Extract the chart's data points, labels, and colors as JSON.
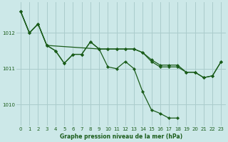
{
  "background_color": "#cce8e8",
  "plot_bg_color": "#cce8e8",
  "line_color": "#1a5c1a",
  "marker_color": "#1a5c1a",
  "grid_color": "#aacccc",
  "xlabel": "Graphe pression niveau de la mer (hPa)",
  "xlabel_color": "#1a5c1a",
  "ylim": [
    1009.4,
    1012.85
  ],
  "yticks": [
    1010,
    1011,
    1012
  ],
  "xticks": [
    0,
    1,
    2,
    3,
    4,
    5,
    6,
    7,
    8,
    9,
    10,
    11,
    12,
    13,
    14,
    15,
    16,
    17,
    18,
    19,
    20,
    21,
    22,
    23
  ],
  "series1_x": [
    0,
    1,
    2,
    3,
    4,
    5,
    6,
    7,
    8,
    9,
    10,
    11,
    12,
    13,
    14,
    15,
    16,
    17,
    18,
    19,
    20,
    21,
    22,
    23
  ],
  "series1_y": [
    1012.6,
    1012.0,
    1012.25,
    1011.65,
    1011.5,
    1011.15,
    1011.4,
    1011.4,
    1011.75,
    1011.55,
    1011.55,
    1011.55,
    1011.55,
    1011.55,
    1011.45,
    1011.2,
    1011.05,
    1011.05,
    1011.05,
    1010.9,
    1010.9,
    1010.75,
    1010.8,
    1011.2
  ],
  "series2_x": [
    0,
    1,
    2,
    3,
    4,
    5,
    6,
    7,
    8,
    9,
    10,
    11,
    12,
    13,
    14,
    15,
    16,
    17,
    18
  ],
  "series2_y": [
    1012.6,
    1012.0,
    1012.25,
    1011.65,
    1011.5,
    1011.15,
    1011.4,
    1011.4,
    1011.75,
    1011.55,
    1011.05,
    1011.0,
    1011.2,
    1011.0,
    1010.35,
    1009.85,
    1009.75,
    1009.62,
    1009.62
  ],
  "series3_x": [
    0,
    1,
    2,
    3,
    9,
    10,
    11,
    12,
    13,
    14,
    15,
    16,
    17,
    18,
    19,
    20,
    21,
    22,
    23
  ],
  "series3_y": [
    1012.6,
    1012.0,
    1012.25,
    1011.65,
    1011.55,
    1011.55,
    1011.55,
    1011.55,
    1011.55,
    1011.45,
    1011.25,
    1011.1,
    1011.1,
    1011.1,
    1010.9,
    1010.9,
    1010.75,
    1010.8,
    1011.2
  ]
}
